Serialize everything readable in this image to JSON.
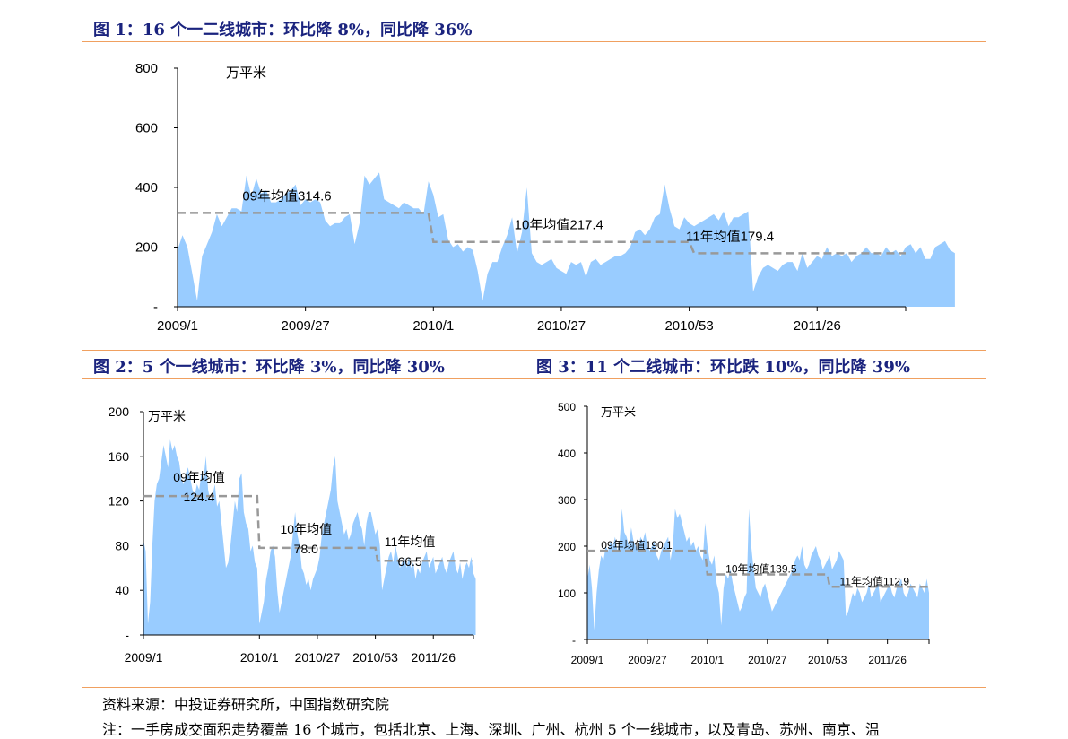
{
  "figures": [
    {
      "title": "图 1：16 个一二线城市：环比降 8%，同比降 36%"
    },
    {
      "title": "图 2：5 个一线城市：环比降 3%，同比降 30%"
    },
    {
      "title": "图 3：11 个二线城市：环比跌 10%，同比降 39%"
    }
  ],
  "footer": {
    "source": "资料来源：中投证券研究所，中国指数研究院",
    "note": "注：一手房成交面积走势覆盖 16 个城市，包括北京、上海、深圳、广州、杭州 5 个一线城市，以及青岛、苏州、南京、温"
  },
  "colors": {
    "area": "#99ccff",
    "avg_line": "#999999",
    "rule": "#f0a060",
    "title": "#1a237e"
  },
  "chart_data": [
    {
      "type": "area",
      "title": "图 1：16 个一二线城市：环比降 8%，同比降 36%",
      "unit": "万平米",
      "ylim": [
        0,
        800
      ],
      "yticks": [
        0,
        200,
        400,
        600,
        800
      ],
      "ytick_labels": [
        "-",
        "200",
        "400",
        "600",
        "800"
      ],
      "xticks": [
        0,
        26,
        52,
        78,
        104,
        130
      ],
      "xtick_labels": [
        "2009/1",
        "2009/27",
        "2010/1",
        "2010/27",
        "2010/53",
        "2011/26"
      ],
      "xmax": 148,
      "series": [
        {
          "values": [
            190,
            240,
            200,
            110,
            20,
            170,
            210,
            250,
            310,
            270,
            300,
            330,
            330,
            320,
            440,
            370,
            430,
            380,
            390,
            350,
            350,
            360,
            380,
            390,
            410,
            340,
            360,
            350,
            360,
            350,
            290,
            270,
            280,
            280,
            300,
            310,
            210,
            280,
            440,
            410,
            430,
            450,
            360,
            350,
            340,
            330,
            350,
            340,
            330,
            330,
            310,
            420,
            375,
            300,
            310,
            225,
            200,
            210,
            185,
            200,
            190,
            120,
            20,
            110,
            150,
            150,
            200,
            240,
            300,
            180,
            250,
            400,
            180,
            150,
            140,
            150,
            160,
            130,
            120,
            110,
            150,
            140,
            150,
            100,
            150,
            160,
            140,
            150,
            160,
            170,
            170,
            180,
            200,
            250,
            260,
            240,
            260,
            300,
            310,
            410,
            330,
            270,
            260,
            300,
            280,
            270,
            280,
            290,
            300,
            310,
            290,
            320,
            270,
            300,
            300,
            310,
            320,
            50,
            100,
            130,
            140,
            130,
            120,
            140,
            150,
            150,
            120,
            180,
            130,
            150,
            170,
            160,
            200,
            170,
            180,
            170,
            180,
            150,
            170,
            180,
            200,
            180,
            180,
            170,
            200,
            180,
            190,
            170,
            200,
            210,
            180,
            200,
            160,
            160,
            200,
            210,
            220,
            190,
            180
          ]
        }
      ],
      "averages": [
        {
          "label": "09年均值314.6",
          "value": 314.6,
          "x_start": 0,
          "x_end": 51
        },
        {
          "label": "10年均值217.4",
          "value": 217.4,
          "x_start": 52,
          "x_end": 104
        },
        {
          "label": "11年均值179.4",
          "value": 179.4,
          "x_start": 105,
          "x_end": 148
        }
      ]
    },
    {
      "type": "area",
      "title": "图 2：5 个一线城市：环比降 3%，同比降 30%",
      "unit": "万平米",
      "ylim": [
        0,
        200
      ],
      "yticks": [
        0,
        40,
        80,
        120,
        160,
        200
      ],
      "ytick_labels": [
        "-",
        "40",
        "80",
        "120",
        "160",
        "200"
      ],
      "xticks": [
        0,
        52,
        78,
        104,
        130
      ],
      "xtick_labels": [
        "2009/1",
        "2010/1",
        "2010/27",
        "2010/53",
        "2011/26"
      ],
      "xmax": 148,
      "series": [
        {
          "values": [
            85,
            75,
            10,
            30,
            80,
            120,
            135,
            140,
            155,
            170,
            160,
            150,
            175,
            165,
            170,
            160,
            155,
            140,
            135,
            145,
            150,
            140,
            130,
            125,
            135,
            130,
            145,
            140,
            160,
            130,
            120,
            125,
            135,
            115,
            120,
            100,
            80,
            60,
            65,
            80,
            100,
            120,
            110,
            140,
            145,
            110,
            100,
            95,
            75,
            80,
            65,
            60,
            10,
            20,
            30,
            50,
            60,
            75,
            80,
            70,
            40,
            20,
            30,
            40,
            50,
            60,
            70,
            90,
            110,
            90,
            80,
            60,
            55,
            45,
            50,
            40,
            50,
            55,
            60,
            70,
            90,
            100,
            110,
            120,
            130,
            150,
            160,
            120,
            110,
            100,
            90,
            95,
            85,
            90,
            100,
            105,
            110,
            100,
            95,
            80,
            100,
            110,
            110,
            100,
            90,
            95,
            80,
            40,
            50,
            60,
            70,
            75,
            65,
            80,
            70,
            60,
            65,
            70,
            60,
            70,
            60,
            65,
            50,
            60,
            55,
            65,
            70,
            75,
            60,
            65,
            70,
            55,
            60,
            65,
            70,
            60,
            55,
            65,
            70,
            75,
            60,
            55,
            65,
            50,
            60,
            65,
            60,
            70,
            55,
            50
          ]
        }
      ],
      "averages": [
        {
          "label_year": "09年均值",
          "label_value": "124.4",
          "value": 124.4,
          "x_start": 0,
          "x_end": 51
        },
        {
          "label_year": "10年均值",
          "label_value": "78.0",
          "value": 78.0,
          "x_start": 52,
          "x_end": 104
        },
        {
          "label_year": "11年均值",
          "label_value": "66.5",
          "value": 66.5,
          "x_start": 105,
          "x_end": 148
        }
      ]
    },
    {
      "type": "area",
      "title": "图 3：11 个二线城市：环比跌 10%，同比降 39%",
      "unit": "万平米",
      "ylim": [
        0,
        500
      ],
      "yticks": [
        0,
        100,
        200,
        300,
        400,
        500
      ],
      "ytick_labels": [
        "-",
        "100",
        "200",
        "300",
        "400",
        "500"
      ],
      "xticks": [
        0,
        26,
        52,
        78,
        104,
        130
      ],
      "xtick_labels": [
        "2009/1",
        "2009/27",
        "2010/1",
        "2010/27",
        "2010/53",
        "2011/26"
      ],
      "xmax": 148,
      "series": [
        {
          "values": [
            130,
            160,
            110,
            20,
            100,
            150,
            180,
            170,
            200,
            190,
            210,
            200,
            220,
            190,
            210,
            280,
            230,
            220,
            200,
            240,
            210,
            200,
            190,
            220,
            210,
            230,
            200,
            190,
            200,
            210,
            180,
            170,
            190,
            200,
            210,
            220,
            170,
            200,
            280,
            260,
            270,
            250,
            230,
            210,
            220,
            200,
            210,
            190,
            200,
            180,
            170,
            250,
            200,
            170,
            160,
            180,
            120,
            100,
            30,
            110,
            140,
            130,
            150,
            120,
            100,
            80,
            60,
            70,
            90,
            100,
            280,
            200,
            150,
            110,
            100,
            90,
            110,
            120,
            100,
            80,
            60,
            70,
            80,
            90,
            100,
            110,
            120,
            130,
            140,
            150,
            170,
            180,
            170,
            200,
            160,
            150,
            160,
            180,
            190,
            200,
            180,
            170,
            150,
            160,
            170,
            180,
            150,
            160,
            170,
            190,
            180,
            170,
            50,
            60,
            80,
            100,
            90,
            110,
            100,
            80,
            90,
            100,
            120,
            90,
            100,
            110,
            120,
            80,
            90,
            100,
            110,
            120,
            100,
            90,
            110,
            120,
            130,
            100,
            90,
            100,
            120,
            110,
            100,
            90,
            120,
            110,
            100,
            130,
            100
          ]
        }
      ],
      "averages": [
        {
          "label": "09年均值190.1",
          "value": 190.1,
          "x_start": 0,
          "x_end": 51
        },
        {
          "label": "10年均值139.5",
          "value": 139.5,
          "x_start": 52,
          "x_end": 104
        },
        {
          "label": "11年均值112.9",
          "value": 112.9,
          "x_start": 105,
          "x_end": 148
        }
      ]
    }
  ]
}
